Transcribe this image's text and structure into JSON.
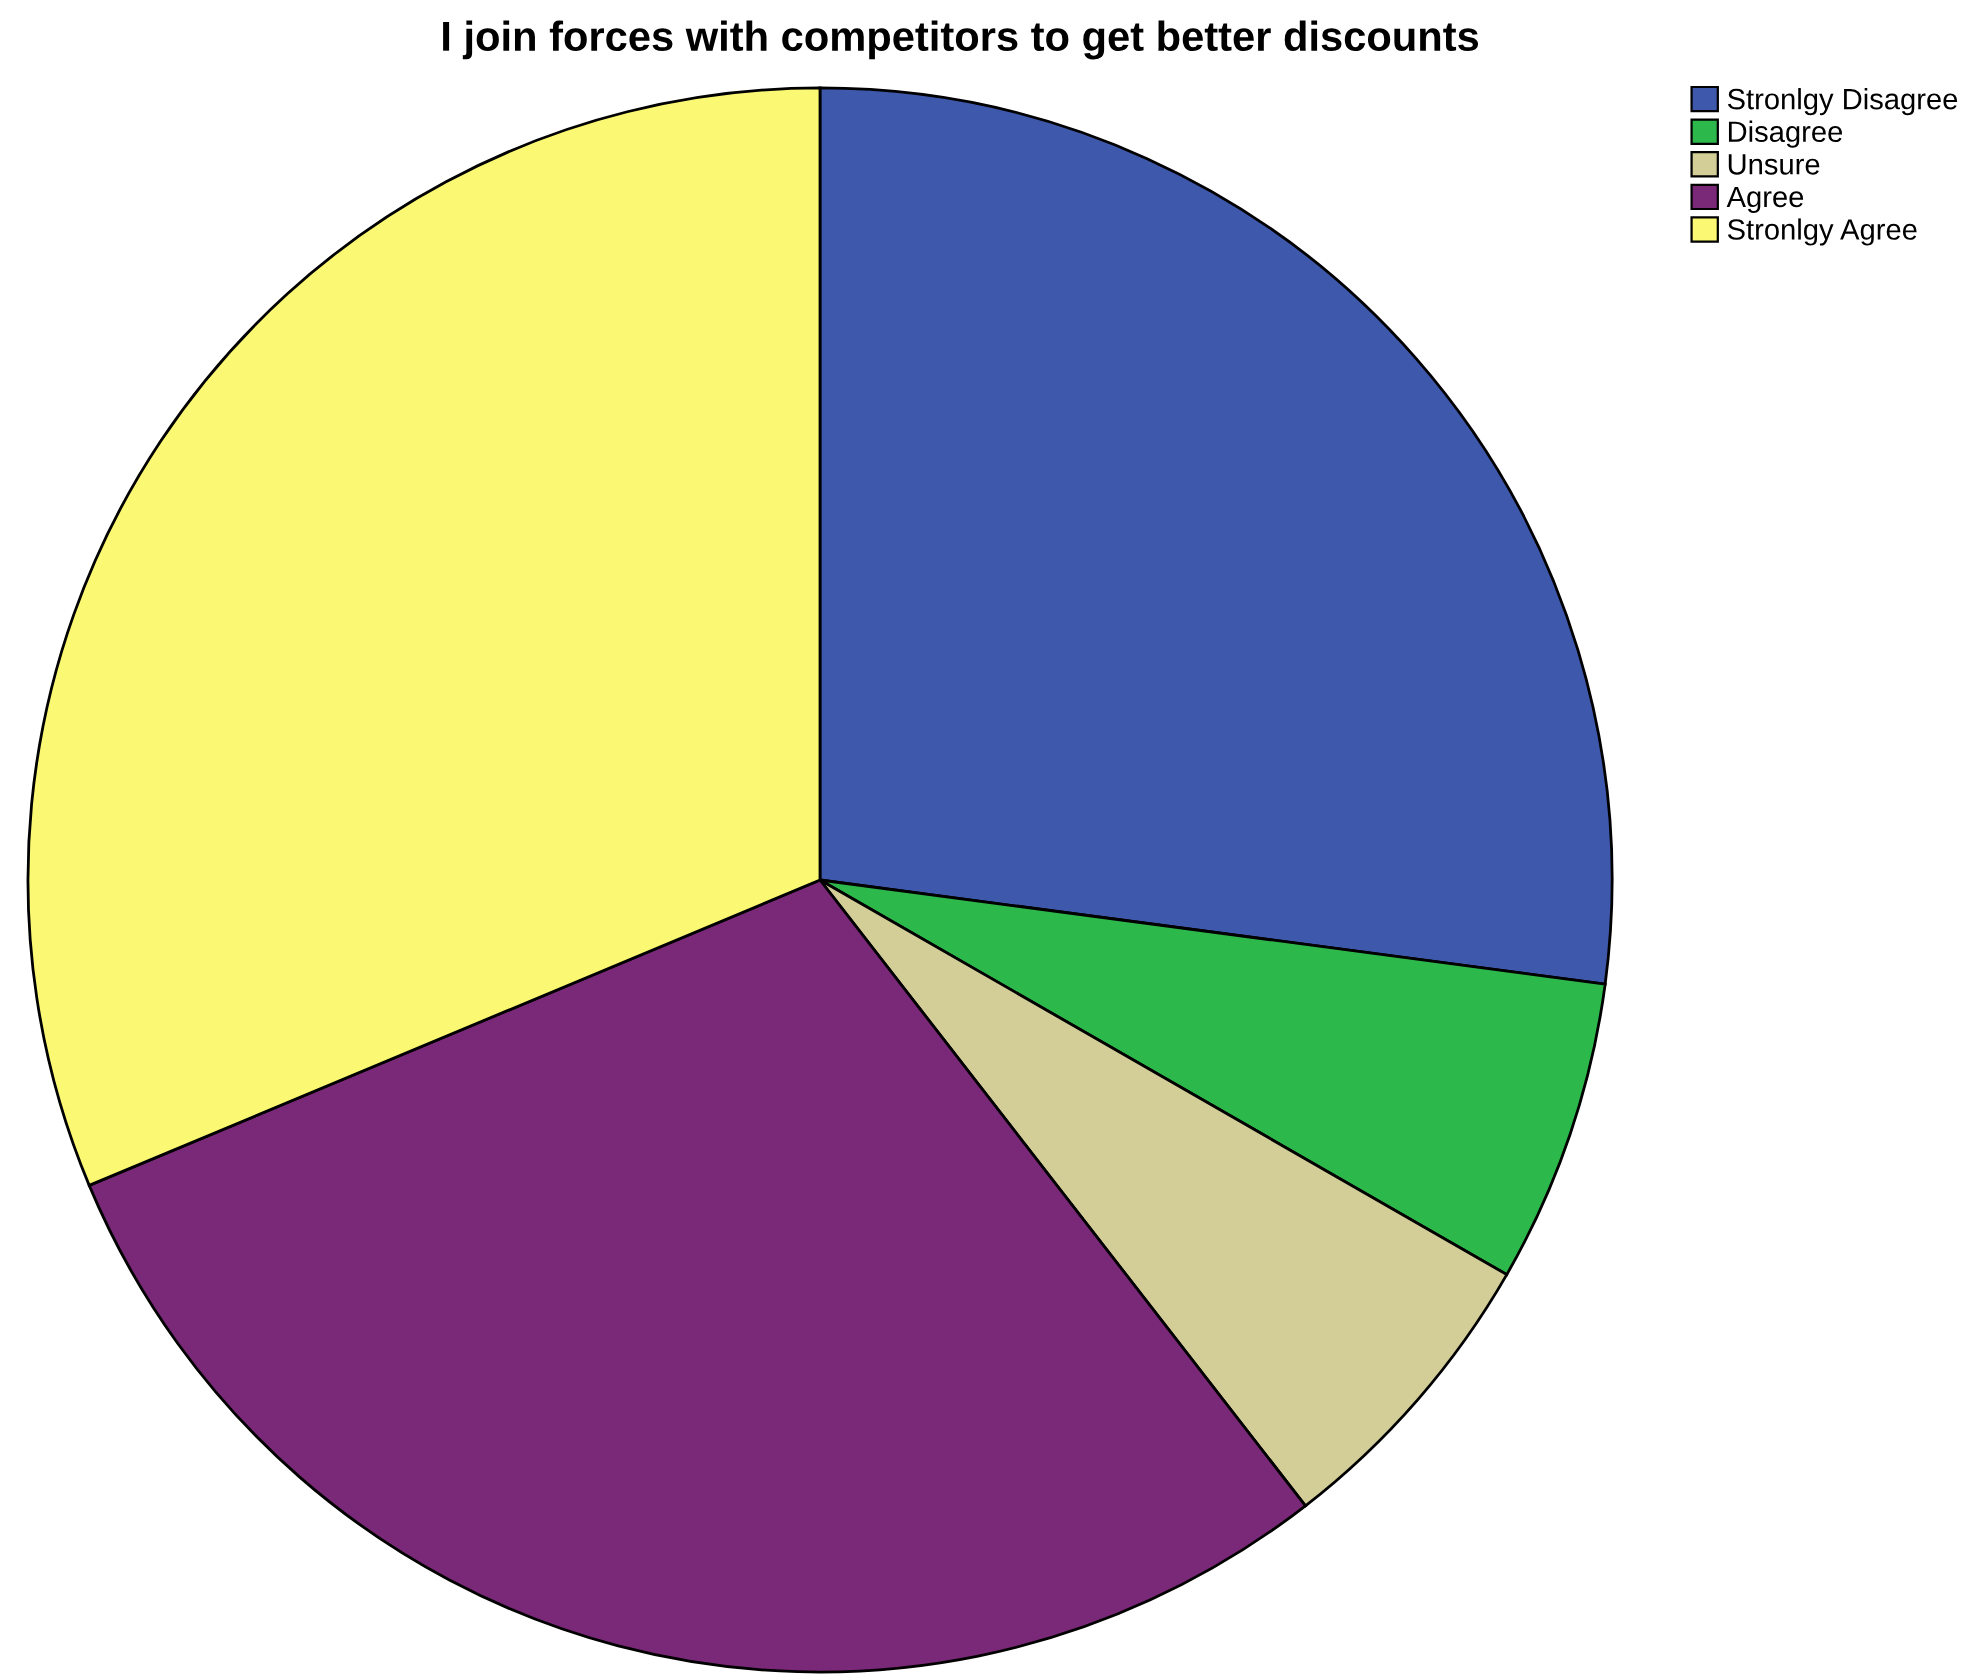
{
  "chart_data": {
    "type": "pie",
    "title": "I join forces with competitors to get better discounts",
    "categories": [
      "Stronlgy Disagree",
      "Disagree",
      "Unsure",
      "Agree",
      "Stronlgy Agree"
    ],
    "values": [
      27.1,
      6.2,
      6.2,
      29.2,
      31.3
    ],
    "colors": [
      "#3e58ac",
      "#2db84b",
      "#d3ce97",
      "#7a2878",
      "#fbf873"
    ],
    "legend": "top right"
  }
}
